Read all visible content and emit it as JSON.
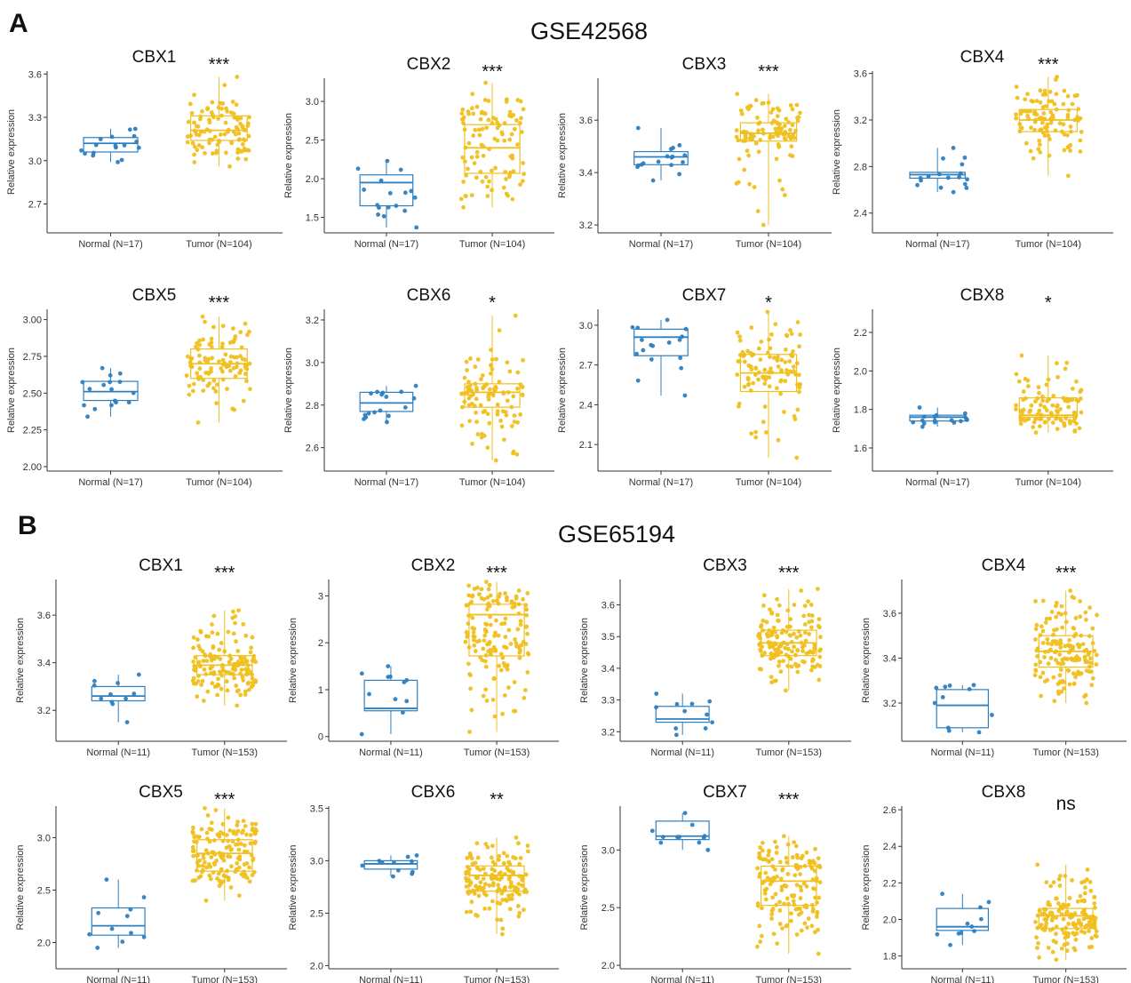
{
  "panels": [
    {
      "label": "A",
      "title": "GSE42568"
    },
    {
      "label": "B",
      "title": "GSE65194"
    }
  ],
  "axis_ylabel": "Relative expression",
  "colors": {
    "normal": "#2e7fc0",
    "tumor": "#f0c020",
    "axis": "#333333",
    "text": "#111111"
  },
  "chart_data": [
    {
      "type": "box",
      "panel": "A",
      "title": "CBX1",
      "significance": "***",
      "ylabel": "Relative expression",
      "ylim": [
        2.5,
        3.62
      ],
      "yticks": [
        2.7,
        3.0,
        3.3,
        3.6
      ],
      "tick_decimals": 1,
      "categories": [
        "Normal (N=17)",
        "Tumor (N=104)"
      ],
      "series": [
        {
          "name": "Normal (N=17)",
          "n": 17,
          "min": 2.99,
          "q1": 3.06,
          "median": 3.12,
          "q3": 3.16,
          "max": 3.22
        },
        {
          "name": "Tumor (N=104)",
          "n": 104,
          "min": 2.96,
          "q1": 3.14,
          "median": 3.21,
          "q3": 3.31,
          "max": 3.58
        }
      ]
    },
    {
      "type": "box",
      "panel": "A",
      "title": "CBX2",
      "significance": "***",
      "ylabel": "Relative expression",
      "ylim": [
        1.3,
        3.3
      ],
      "yticks": [
        1.5,
        2.0,
        2.5,
        3.0
      ],
      "tick_decimals": 1,
      "categories": [
        "Normal (N=17)",
        "Tumor (N=104)"
      ],
      "series": [
        {
          "name": "Normal (N=17)",
          "n": 17,
          "min": 1.37,
          "q1": 1.65,
          "median": 1.95,
          "q3": 2.05,
          "max": 2.23
        },
        {
          "name": "Tumor (N=104)",
          "n": 104,
          "min": 1.63,
          "q1": 2.07,
          "median": 2.4,
          "q3": 2.7,
          "max": 3.24
        }
      ]
    },
    {
      "type": "box",
      "panel": "A",
      "title": "CBX3",
      "significance": "***",
      "ylabel": "Relative expression",
      "ylim": [
        3.17,
        3.76
      ],
      "yticks": [
        3.2,
        3.4,
        3.6
      ],
      "tick_decimals": 1,
      "categories": [
        "Normal (N=17)",
        "Tumor (N=104)"
      ],
      "series": [
        {
          "name": "Normal (N=17)",
          "n": 17,
          "min": 3.37,
          "q1": 3.43,
          "median": 3.46,
          "q3": 3.48,
          "max": 3.57
        },
        {
          "name": "Tumor (N=104)",
          "n": 104,
          "min": 3.2,
          "q1": 3.52,
          "median": 3.55,
          "q3": 3.59,
          "max": 3.7
        }
      ]
    },
    {
      "type": "box",
      "panel": "A",
      "title": "CBX4",
      "significance": "***",
      "ylabel": "Relative expression",
      "ylim": [
        2.23,
        3.62
      ],
      "yticks": [
        2.4,
        2.8,
        3.2,
        3.6
      ],
      "tick_decimals": 1,
      "categories": [
        "Normal (N=17)",
        "Tumor (N=104)"
      ],
      "series": [
        {
          "name": "Normal (N=17)",
          "n": 17,
          "min": 2.58,
          "q1": 2.7,
          "median": 2.73,
          "q3": 2.75,
          "max": 2.96
        },
        {
          "name": "Tumor (N=104)",
          "n": 104,
          "min": 2.72,
          "q1": 3.1,
          "median": 3.2,
          "q3": 3.29,
          "max": 3.57
        }
      ]
    },
    {
      "type": "box",
      "panel": "A",
      "title": "CBX5",
      "significance": "***",
      "ylabel": "Relative expression",
      "ylim": [
        1.97,
        3.07
      ],
      "yticks": [
        2.0,
        2.25,
        2.5,
        2.75,
        3.0
      ],
      "tick_decimals": 2,
      "categories": [
        "Normal (N=17)",
        "Tumor (N=104)"
      ],
      "series": [
        {
          "name": "Normal (N=17)",
          "n": 17,
          "min": 2.34,
          "q1": 2.45,
          "median": 2.51,
          "q3": 2.58,
          "max": 2.67
        },
        {
          "name": "Tumor (N=104)",
          "n": 104,
          "min": 2.3,
          "q1": 2.6,
          "median": 2.7,
          "q3": 2.8,
          "max": 3.02
        }
      ]
    },
    {
      "type": "box",
      "panel": "A",
      "title": "CBX6",
      "significance": "*",
      "ylabel": "Relative expression",
      "ylim": [
        2.49,
        3.25
      ],
      "yticks": [
        2.6,
        2.8,
        3.0,
        3.2
      ],
      "tick_decimals": 1,
      "categories": [
        "Normal (N=17)",
        "Tumor (N=104)"
      ],
      "series": [
        {
          "name": "Normal (N=17)",
          "n": 17,
          "min": 2.72,
          "q1": 2.77,
          "median": 2.81,
          "q3": 2.86,
          "max": 2.89
        },
        {
          "name": "Tumor (N=104)",
          "n": 104,
          "min": 2.54,
          "q1": 2.79,
          "median": 2.86,
          "q3": 2.9,
          "max": 3.22
        }
      ]
    },
    {
      "type": "box",
      "panel": "A",
      "title": "CBX7",
      "significance": "*",
      "ylabel": "Relative expression",
      "ylim": [
        1.9,
        3.12
      ],
      "yticks": [
        2.1,
        2.4,
        2.7,
        3.0
      ],
      "tick_decimals": 1,
      "categories": [
        "Normal (N=17)",
        "Tumor (N=104)"
      ],
      "series": [
        {
          "name": "Normal (N=17)",
          "n": 17,
          "min": 2.47,
          "q1": 2.77,
          "median": 2.91,
          "q3": 2.97,
          "max": 3.04
        },
        {
          "name": "Tumor (N=104)",
          "n": 104,
          "min": 2.0,
          "q1": 2.5,
          "median": 2.64,
          "q3": 2.78,
          "max": 3.1
        }
      ]
    },
    {
      "type": "box",
      "panel": "A",
      "title": "CBX8",
      "significance": "*",
      "ylabel": "Relative expression",
      "ylim": [
        1.48,
        2.32
      ],
      "yticks": [
        1.6,
        1.8,
        2.0,
        2.2
      ],
      "tick_decimals": 1,
      "categories": [
        "Normal (N=17)",
        "Tumor (N=104)"
      ],
      "series": [
        {
          "name": "Normal (N=17)",
          "n": 17,
          "min": 1.71,
          "q1": 1.74,
          "median": 1.76,
          "q3": 1.77,
          "max": 1.81
        },
        {
          "name": "Tumor (N=104)",
          "n": 104,
          "min": 1.68,
          "q1": 1.76,
          "median": 1.77,
          "q3": 1.86,
          "max": 2.08
        }
      ]
    },
    {
      "type": "box",
      "panel": "B",
      "title": "CBX1",
      "significance": "***",
      "ylabel": "Relative expression",
      "ylim": [
        3.07,
        3.75
      ],
      "yticks": [
        3.2,
        3.4,
        3.6
      ],
      "tick_decimals": 1,
      "categories": [
        "Normal (N=11)",
        "Tumor (N=153)"
      ],
      "series": [
        {
          "name": "Normal (N=11)",
          "n": 11,
          "min": 3.15,
          "q1": 3.24,
          "median": 3.26,
          "q3": 3.3,
          "max": 3.35
        },
        {
          "name": "Tumor (N=153)",
          "n": 153,
          "min": 3.22,
          "q1": 3.35,
          "median": 3.39,
          "q3": 3.43,
          "max": 3.62
        }
      ]
    },
    {
      "type": "box",
      "panel": "B",
      "title": "CBX2",
      "significance": "***",
      "ylabel": "Relative expression",
      "ylim": [
        -0.1,
        3.35
      ],
      "yticks": [
        0,
        1,
        2,
        3
      ],
      "tick_decimals": 0,
      "categories": [
        "Normal (N=11)",
        "Tumor (N=153)"
      ],
      "series": [
        {
          "name": "Normal (N=11)",
          "n": 11,
          "min": 0.05,
          "q1": 0.55,
          "median": 0.6,
          "q3": 1.2,
          "max": 1.5
        },
        {
          "name": "Tumor (N=153)",
          "n": 153,
          "min": 0.1,
          "q1": 1.72,
          "median": 2.6,
          "q3": 2.82,
          "max": 3.3
        }
      ]
    },
    {
      "type": "box",
      "panel": "B",
      "title": "CBX3",
      "significance": "***",
      "ylabel": "Relative expression",
      "ylim": [
        3.17,
        3.68
      ],
      "yticks": [
        3.2,
        3.3,
        3.4,
        3.5,
        3.6
      ],
      "tick_decimals": 1,
      "categories": [
        "Normal (N=11)",
        "Tumor (N=153)"
      ],
      "series": [
        {
          "name": "Normal (N=11)",
          "n": 11,
          "min": 3.19,
          "q1": 3.23,
          "median": 3.24,
          "q3": 3.28,
          "max": 3.32
        },
        {
          "name": "Tumor (N=153)",
          "n": 153,
          "min": 3.33,
          "q1": 3.44,
          "median": 3.48,
          "q3": 3.52,
          "max": 3.65
        }
      ]
    },
    {
      "type": "box",
      "panel": "B",
      "title": "CBX4",
      "significance": "***",
      "ylabel": "Relative expression",
      "ylim": [
        3.03,
        3.75
      ],
      "yticks": [
        3.2,
        3.4,
        3.6
      ],
      "tick_decimals": 1,
      "categories": [
        "Normal (N=11)",
        "Tumor (N=153)"
      ],
      "series": [
        {
          "name": "Normal (N=11)",
          "n": 11,
          "min": 3.07,
          "q1": 3.09,
          "median": 3.19,
          "q3": 3.26,
          "max": 3.28
        },
        {
          "name": "Tumor (N=153)",
          "n": 153,
          "min": 3.2,
          "q1": 3.36,
          "median": 3.43,
          "q3": 3.5,
          "max": 3.7
        }
      ]
    },
    {
      "type": "box",
      "panel": "B",
      "title": "CBX5",
      "significance": "***",
      "ylabel": "Relative expression",
      "ylim": [
        1.75,
        3.3
      ],
      "yticks": [
        2.0,
        2.5,
        3.0
      ],
      "tick_decimals": 1,
      "categories": [
        "Normal (N=11)",
        "Tumor (N=153)"
      ],
      "series": [
        {
          "name": "Normal (N=11)",
          "n": 11,
          "min": 1.95,
          "q1": 2.07,
          "median": 2.16,
          "q3": 2.33,
          "max": 2.6
        },
        {
          "name": "Tumor (N=153)",
          "n": 153,
          "min": 2.4,
          "q1": 2.68,
          "median": 2.85,
          "q3": 2.98,
          "max": 3.28
        }
      ]
    },
    {
      "type": "box",
      "panel": "B",
      "title": "CBX6",
      "significance": "**",
      "ylabel": "Relative expression",
      "ylim": [
        1.97,
        3.52
      ],
      "yticks": [
        2.0,
        2.5,
        3.0,
        3.5
      ],
      "tick_decimals": 1,
      "categories": [
        "Normal (N=11)",
        "Tumor (N=153)"
      ],
      "series": [
        {
          "name": "Normal (N=11)",
          "n": 11,
          "min": 2.85,
          "q1": 2.92,
          "median": 2.97,
          "q3": 3.0,
          "max": 3.05
        },
        {
          "name": "Tumor (N=153)",
          "n": 153,
          "min": 2.3,
          "q1": 2.71,
          "median": 2.86,
          "q3": 2.95,
          "max": 3.22
        }
      ]
    },
    {
      "type": "box",
      "panel": "B",
      "title": "CBX7",
      "significance": "***",
      "ylabel": "Relative expression",
      "ylim": [
        1.97,
        3.38
      ],
      "yticks": [
        2.0,
        2.5,
        3.0
      ],
      "tick_decimals": 1,
      "categories": [
        "Normal (N=11)",
        "Tumor (N=153)"
      ],
      "series": [
        {
          "name": "Normal (N=11)",
          "n": 11,
          "min": 3.0,
          "q1": 3.09,
          "median": 3.12,
          "q3": 3.25,
          "max": 3.32
        },
        {
          "name": "Tumor (N=153)",
          "n": 153,
          "min": 2.1,
          "q1": 2.52,
          "median": 2.73,
          "q3": 2.86,
          "max": 3.12
        }
      ]
    },
    {
      "type": "box",
      "panel": "B",
      "title": "CBX8",
      "significance": "ns",
      "ylabel": "Relative expression",
      "ylim": [
        1.73,
        2.62
      ],
      "yticks": [
        1.8,
        2.0,
        2.2,
        2.4,
        2.6
      ],
      "tick_decimals": 1,
      "categories": [
        "Normal (N=11)",
        "Tumor (N=153)"
      ],
      "series": [
        {
          "name": "Normal (N=11)",
          "n": 11,
          "min": 1.86,
          "q1": 1.94,
          "median": 1.96,
          "q3": 2.06,
          "max": 2.14
        },
        {
          "name": "Tumor (N=153)",
          "n": 153,
          "min": 1.78,
          "q1": 1.95,
          "median": 2.02,
          "q3": 2.06,
          "max": 2.3
        }
      ]
    }
  ]
}
